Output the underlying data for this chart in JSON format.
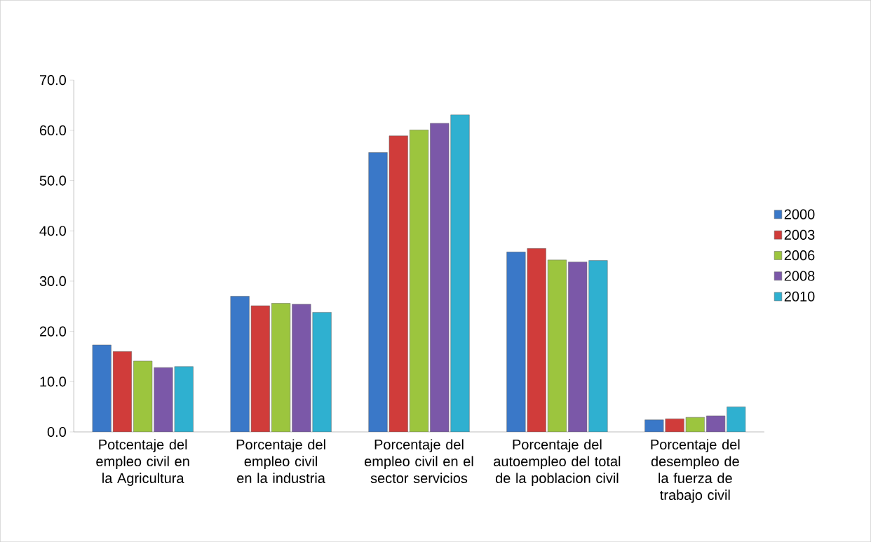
{
  "chart_data": {
    "type": "bar",
    "categories": [
      "Potcentaje del empleo civil en la Agricultura",
      "Porcentaje del empleo civil en la industria",
      "Porcentaje del empleo civil en el sector servicios",
      "Porcentaje del autoempleo del total de la poblacion civil",
      "Porcentaje del desempleo de la fuerza de trabajo civil"
    ],
    "series": [
      {
        "name": "2000",
        "color": "#3a78c8",
        "values": [
          17.3,
          27.0,
          55.6,
          35.8,
          2.4
        ]
      },
      {
        "name": "2003",
        "color": "#d03c3a",
        "values": [
          16.0,
          25.1,
          58.9,
          36.5,
          2.6
        ]
      },
      {
        "name": "2006",
        "color": "#9cc53e",
        "values": [
          14.1,
          25.6,
          60.1,
          34.2,
          2.9
        ]
      },
      {
        "name": "2008",
        "color": "#7b58a8",
        "values": [
          12.8,
          25.4,
          61.4,
          33.8,
          3.2
        ]
      },
      {
        "name": "2010",
        "color": "#2fb0d0",
        "values": [
          13.0,
          23.8,
          63.1,
          34.1,
          5.0
        ]
      }
    ],
    "ylim": [
      0,
      70
    ],
    "yticks": [
      {
        "value": 0,
        "label": "0.0"
      },
      {
        "value": 10,
        "label": "10.0"
      },
      {
        "value": 20,
        "label": "20.0"
      },
      {
        "value": 30,
        "label": "30.0"
      },
      {
        "value": 40,
        "label": "40.0"
      },
      {
        "value": 50,
        "label": "50.0"
      },
      {
        "value": 60,
        "label": "60.0"
      },
      {
        "value": 70,
        "label": "70.0"
      }
    ],
    "grid": false,
    "legend": "right"
  }
}
